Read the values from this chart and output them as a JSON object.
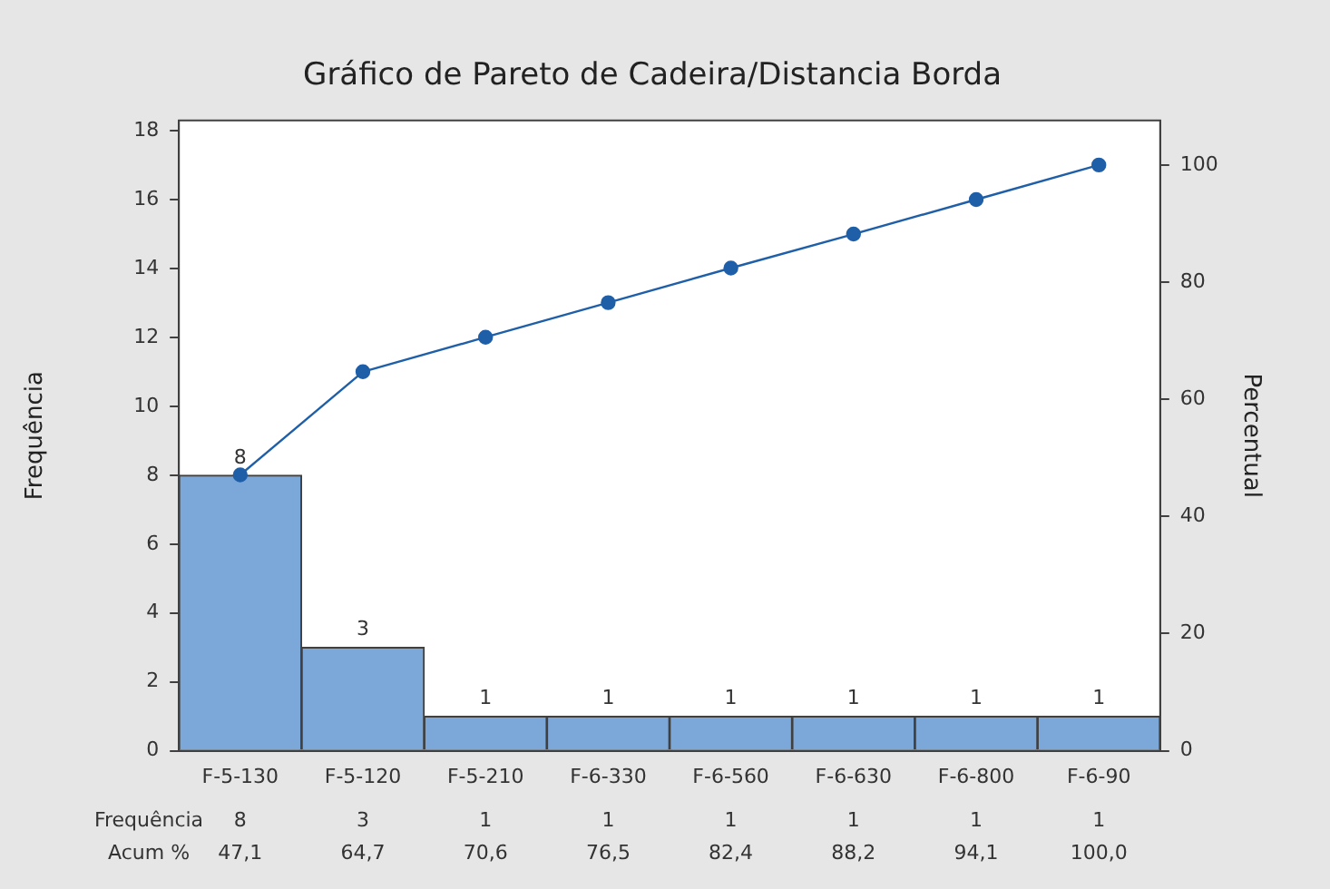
{
  "chart_data": {
    "type": "bar",
    "title": "Gráfico de Pareto de Cadeira/Distancia Borda",
    "ylabel": "Frequência",
    "y2label": "Percentual",
    "categories": [
      "F-5-130",
      "F-5-120",
      "F-5-210",
      "F-6-330",
      "F-6-560",
      "F-6-630",
      "F-6-800",
      "F-6-90"
    ],
    "series": [
      {
        "color": "#7ba7d9",
        "values": [
          8,
          3,
          1,
          1,
          1,
          1,
          1,
          1
        ],
        "value_labels": [
          "8",
          "3",
          "1",
          "1",
          "1",
          "1",
          "1",
          "1"
        ]
      },
      {
        "type": "line",
        "axis": "y2",
        "color": "#1f5fa8",
        "values": [
          47.1,
          64.7,
          70.6,
          76.5,
          82.4,
          88.2,
          94.1,
          100
        ],
        "value_labels": [
          "47,1",
          "64,7",
          "70,6",
          "76,5",
          "82,4",
          "88,2",
          "94,1",
          "100,0"
        ]
      }
    ],
    "annotations": [
      "Frequência",
      "Acum %"
    ],
    "ylim": [
      0,
      18.3
    ],
    "yticks": [
      0,
      2,
      4,
      6,
      8,
      10,
      12,
      14,
      16,
      18
    ],
    "y2lim": [
      0,
      107.6
    ],
    "y2ticks": [
      0,
      20,
      40,
      60,
      80,
      100
    ],
    "grid": false,
    "legend": false,
    "marker": "circle",
    "line_style": "solid",
    "data_labels": true
  }
}
